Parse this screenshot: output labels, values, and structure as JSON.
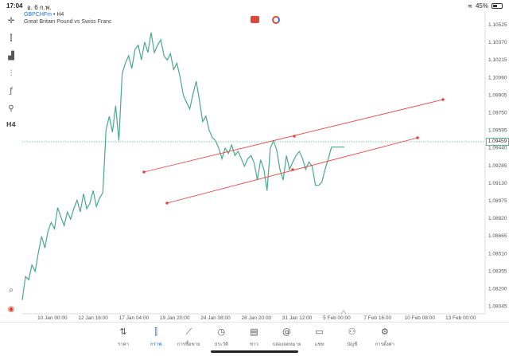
{
  "status_bar": {
    "time": "17:04",
    "date": "อ. 6 ก.พ.",
    "battery": "45%",
    "wifi_icon": "wifi-icon"
  },
  "header": {
    "symbol": "GBPCHFm",
    "timeframe": "• H4",
    "description": "Great Britain Pound vs Swiss Franc"
  },
  "price_axis": [
    "1.10525",
    "1.10370",
    "1.10215",
    "1.10060",
    "1.09905",
    "1.09750",
    "1.09595",
    "1.09440",
    "1.09285",
    "1.09130",
    "1.08975",
    "1.08820",
    "1.08665",
    "1.08510",
    "1.08355",
    "1.08200",
    "1.08045"
  ],
  "time_axis": [
    "10 Jan 00:00",
    "12 Jan 16:00",
    "17 Jan 04:00",
    "19 Jan 20:00",
    "24 Jan 08:00",
    "28 Jan 20:00",
    "31 Jan 12:00",
    "5 Feb 00:00",
    "7 Feb 16:00",
    "10 Feb 08:00",
    "13 Feb 00:00"
  ],
  "current_price": "1.09459",
  "colors": {
    "line": "#4aa987",
    "trendline": "#e04848",
    "current": "#5bb394"
  },
  "chart_data": {
    "type": "line",
    "title": "",
    "ylim": [
      1.0795,
      1.1062
    ],
    "x": [
      0,
      1,
      2,
      3,
      4,
      5,
      6,
      7,
      8,
      9,
      10,
      11,
      12,
      13,
      14,
      15,
      16,
      17,
      18,
      19,
      20,
      21,
      22,
      23,
      24,
      25,
      26,
      27,
      28,
      29,
      30,
      31,
      32,
      33,
      34,
      35,
      36,
      37,
      38,
      39,
      40,
      41,
      42,
      43,
      44,
      45,
      46,
      47,
      48,
      49,
      50,
      51,
      52,
      53,
      54,
      55,
      56,
      57,
      58,
      59,
      60,
      61,
      62,
      63,
      64,
      65,
      66,
      67,
      68,
      69,
      70,
      71,
      72,
      73,
      74,
      75,
      76,
      77,
      78,
      79,
      80,
      81,
      82,
      83,
      84,
      85,
      86,
      87,
      88,
      89,
      90,
      91,
      92,
      93,
      94,
      95,
      96,
      97,
      98,
      99,
      100
    ],
    "values": [
      1.0802,
      1.0824,
      1.0821,
      1.0835,
      1.0829,
      1.0847,
      1.0862,
      1.0851,
      1.0867,
      1.0875,
      1.0869,
      1.0889,
      1.088,
      1.0872,
      1.0885,
      1.0878,
      1.0888,
      1.0896,
      1.0885,
      1.0902,
      1.0888,
      1.0893,
      1.0905,
      1.089,
      1.0898,
      1.0903,
      1.0962,
      1.0975,
      1.096,
      1.0985,
      1.0952,
      1.1015,
      1.1025,
      1.1032,
      1.102,
      1.1038,
      1.1042,
      1.1028,
      1.1045,
      1.1035,
      1.1054,
      1.1035,
      1.1042,
      1.1047,
      1.1032,
      1.1028,
      1.1034,
      1.1019,
      1.1025,
      1.1012,
      1.0995,
      1.0988,
      1.0982,
      1.0996,
      1.1008,
      1.099,
      1.097,
      1.0975,
      1.0962,
      1.0955,
      1.0952,
      1.0945,
      1.0935,
      1.0945,
      1.094,
      1.0948,
      1.0938,
      1.0942,
      1.0935,
      1.0928,
      1.0935,
      1.0938,
      1.0931,
      1.0915,
      1.0934,
      1.0925,
      1.0905,
      1.0945,
      1.0952,
      1.0943,
      1.0925,
      1.0915,
      1.0938,
      1.0925,
      1.0932,
      1.0938,
      1.0942,
      1.0935,
      1.0925,
      1.0932,
      1.0928,
      1.091,
      1.091,
      1.0913,
      1.0925,
      1.0935,
      1.0946,
      1.0946,
      1.0946,
      1.0946,
      1.0946
    ],
    "trendlines": [
      {
        "x1": 1.0922,
        "x1_t": 0.21,
        "y1": 1.0922,
        "x2_t": 0.84,
        "y2": 1.0986
      },
      {
        "x1_t": 0.24,
        "y1": 1.0895,
        "x2_t": 0.83,
        "y2": 1.0949
      }
    ]
  },
  "nav": [
    {
      "label": "ราคา",
      "icon": "quotes-icon"
    },
    {
      "label": "กราฟ",
      "icon": "chart-icon",
      "active": true
    },
    {
      "label": "การซื้อขาย",
      "icon": "trade-icon"
    },
    {
      "label": "ประวัติ",
      "icon": "history-icon"
    },
    {
      "label": "ข่าว",
      "icon": "news-icon"
    },
    {
      "label": "กล่องจดหมาย",
      "icon": "mailbox-icon"
    },
    {
      "label": "แชท",
      "icon": "chat-icon"
    },
    {
      "label": "บัญชี",
      "icon": "account-icon"
    },
    {
      "label": "การตั้งค่า",
      "icon": "settings-icon"
    }
  ]
}
